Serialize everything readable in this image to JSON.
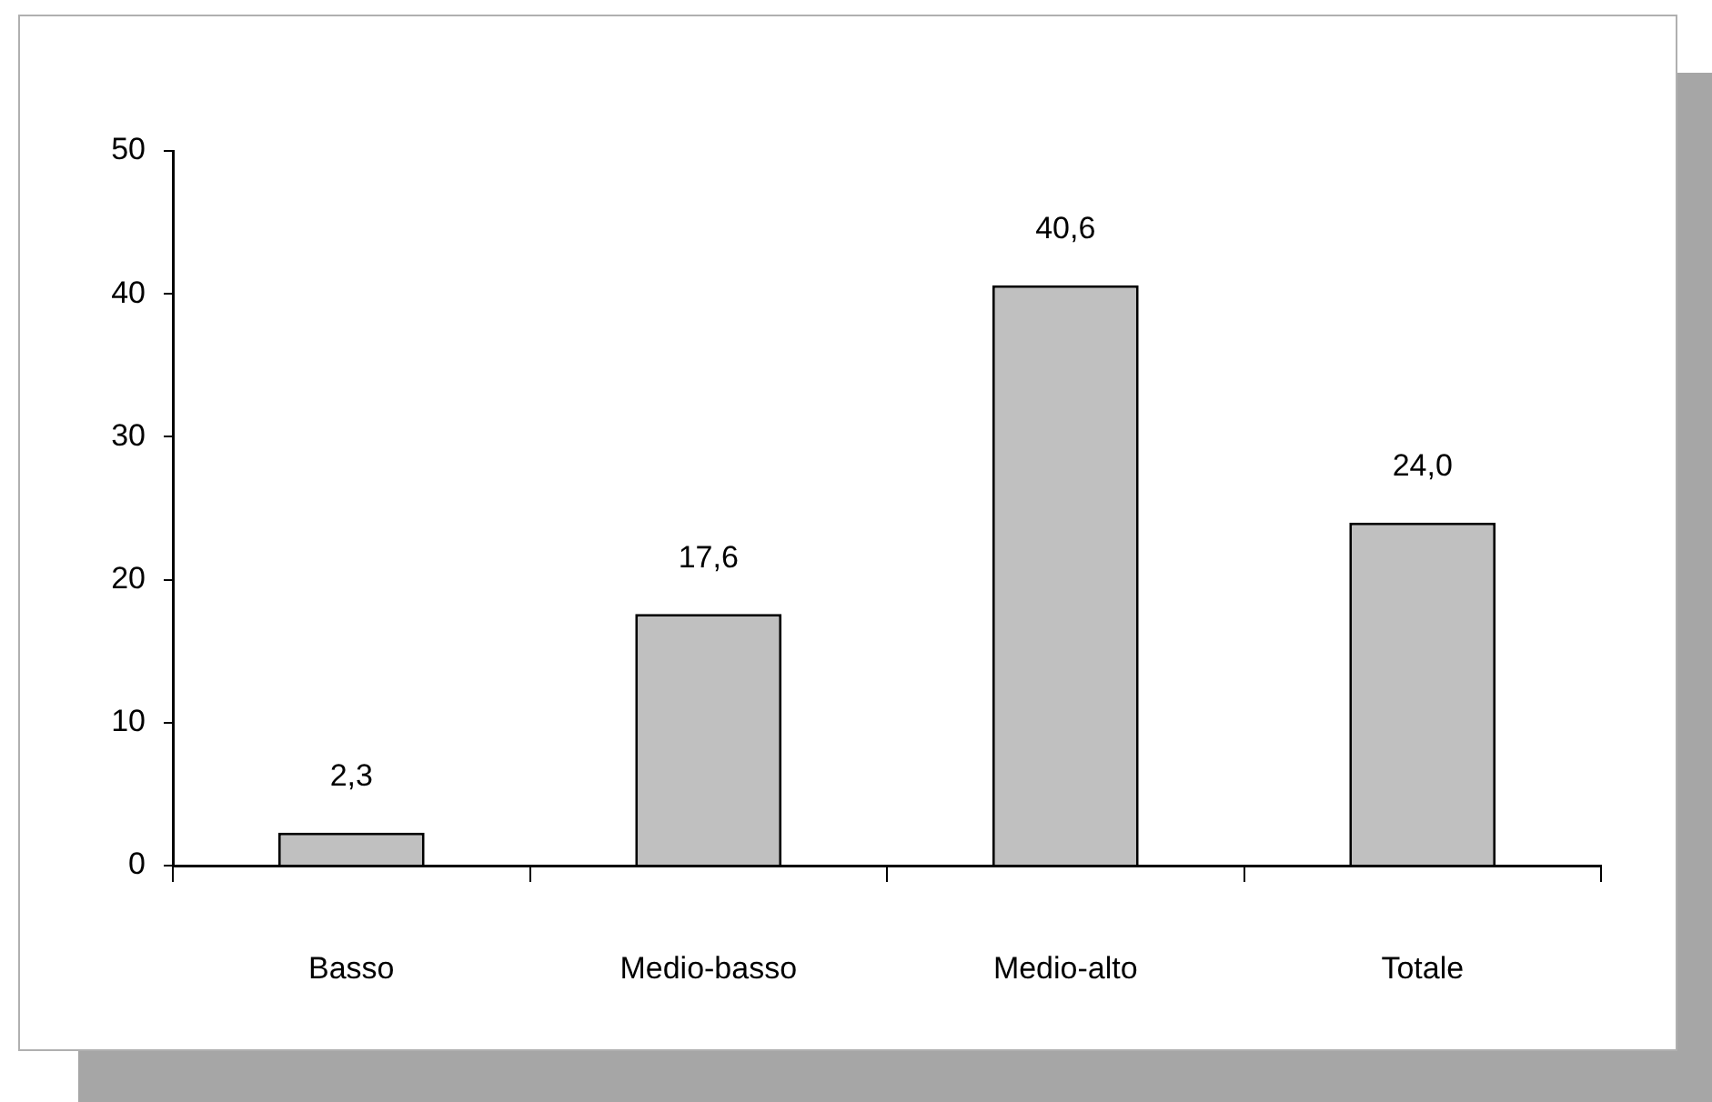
{
  "chart_data": {
    "type": "bar",
    "categories": [
      "Basso",
      "Medio-basso",
      "Medio-alto",
      "Totale"
    ],
    "values": [
      2.3,
      17.6,
      40.6,
      24.0
    ],
    "value_labels": [
      "2,3",
      "17,6",
      "40,6",
      "24,0"
    ],
    "color": "#c0c0c0",
    "ylim": [
      0,
      50
    ],
    "yticks": [
      0,
      10,
      20,
      30,
      40,
      50
    ],
    "grid": false,
    "legend": false
  }
}
